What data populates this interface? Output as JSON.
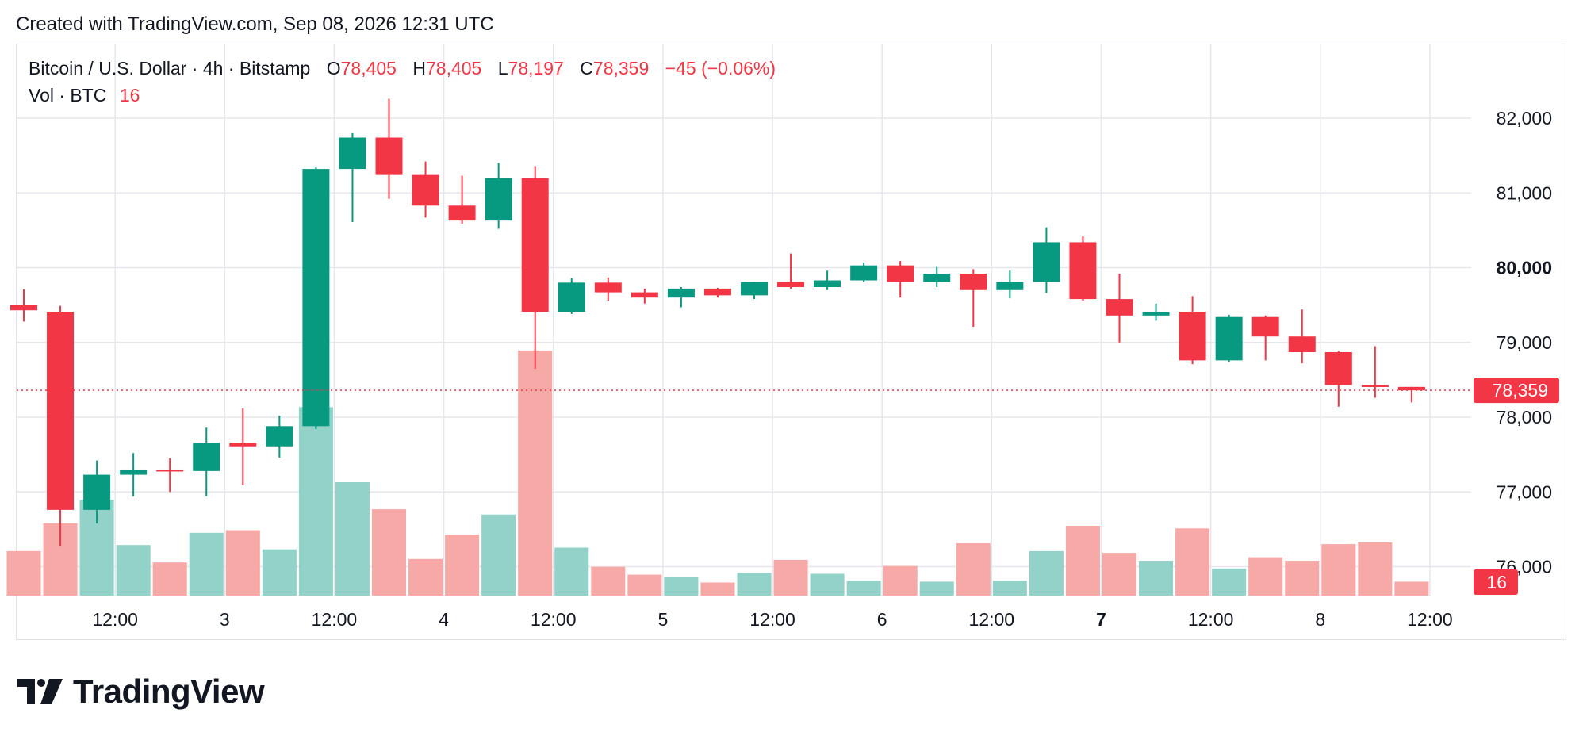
{
  "header": {
    "caption": "Created with TradingView.com, Sep 08, 2026 12:31 UTC"
  },
  "legend": {
    "symbol": "Bitcoin / U.S. Dollar · 4h · Bitstamp",
    "open_label": "O",
    "open": "78,405",
    "high_label": "H",
    "high": "78,405",
    "low_label": "L",
    "low": "78,197",
    "close_label": "C",
    "close": "78,359",
    "change": "−45 (−0.06%)",
    "vol_label": "Vol · BTC",
    "vol": "16"
  },
  "footer": {
    "brand": "TradingView",
    "logo_icon": "tradingview-logo-icon"
  },
  "colors": {
    "up": "#089981",
    "down": "#f23645",
    "up_vol": "#93d2c9",
    "down_vol": "#f7a9a7",
    "grid": "#e5e7ec"
  },
  "chart_data": {
    "type": "candlestick",
    "interval": "4h",
    "price_axis": {
      "ticks": [
        {
          "value": 82000,
          "label": "82,000"
        },
        {
          "value": 81000,
          "label": "81,000"
        },
        {
          "value": 80000,
          "label": "80,000",
          "bold": true
        },
        {
          "value": 79000,
          "label": "79,000"
        },
        {
          "value": 78000,
          "label": "78,000"
        },
        {
          "value": 77000,
          "label": "77,000"
        },
        {
          "value": 76000,
          "label": "76,000"
        }
      ]
    },
    "time_axis": {
      "ticks": [
        {
          "index": 2.5,
          "label": "12:00"
        },
        {
          "index": 5.5,
          "label": "3"
        },
        {
          "index": 8.5,
          "label": "12:00"
        },
        {
          "index": 11.5,
          "label": "4"
        },
        {
          "index": 14.5,
          "label": "12:00"
        },
        {
          "index": 17.5,
          "label": "5"
        },
        {
          "index": 20.5,
          "label": "12:00"
        },
        {
          "index": 23.5,
          "label": "6"
        },
        {
          "index": 26.5,
          "label": "12:00"
        },
        {
          "index": 29.5,
          "label": "7",
          "bold": true
        },
        {
          "index": 32.5,
          "label": "12:00"
        },
        {
          "index": 35.5,
          "label": "8"
        },
        {
          "index": 38.5,
          "label": "12:00"
        }
      ]
    },
    "last_price": {
      "value": 78359,
      "label": "78,359"
    },
    "last_volume": {
      "value": 16,
      "label": "16"
    },
    "candles": [
      {
        "o": 79500,
        "h": 79710,
        "l": 79280,
        "c": 79430,
        "v": 51
      },
      {
        "o": 79410,
        "h": 79490,
        "l": 76280,
        "c": 76760,
        "v": 83
      },
      {
        "o": 76760,
        "h": 77420,
        "l": 76580,
        "c": 77230,
        "v": 110
      },
      {
        "o": 77230,
        "h": 77520,
        "l": 76940,
        "c": 77300,
        "v": 58
      },
      {
        "o": 77300,
        "h": 77450,
        "l": 77000,
        "c": 77280,
        "v": 38
      },
      {
        "o": 77280,
        "h": 77860,
        "l": 76940,
        "c": 77660,
        "v": 72
      },
      {
        "o": 77660,
        "h": 78120,
        "l": 77090,
        "c": 77610,
        "v": 75
      },
      {
        "o": 77610,
        "h": 78020,
        "l": 77460,
        "c": 77880,
        "v": 53
      },
      {
        "o": 77880,
        "h": 81340,
        "l": 77840,
        "c": 81320,
        "v": 216
      },
      {
        "o": 81320,
        "h": 81800,
        "l": 80610,
        "c": 81740,
        "v": 130
      },
      {
        "o": 81740,
        "h": 82260,
        "l": 80920,
        "c": 81240,
        "v": 99
      },
      {
        "o": 81240,
        "h": 81420,
        "l": 80670,
        "c": 80830,
        "v": 42
      },
      {
        "o": 80830,
        "h": 81230,
        "l": 80590,
        "c": 80630,
        "v": 70
      },
      {
        "o": 80630,
        "h": 81400,
        "l": 80520,
        "c": 81200,
        "v": 93
      },
      {
        "o": 81200,
        "h": 81360,
        "l": 78650,
        "c": 79410,
        "v": 281
      },
      {
        "o": 79410,
        "h": 79860,
        "l": 79380,
        "c": 79800,
        "v": 55
      },
      {
        "o": 79800,
        "h": 79870,
        "l": 79560,
        "c": 79670,
        "v": 33
      },
      {
        "o": 79670,
        "h": 79720,
        "l": 79520,
        "c": 79600,
        "v": 24
      },
      {
        "o": 79600,
        "h": 79740,
        "l": 79470,
        "c": 79720,
        "v": 21
      },
      {
        "o": 79720,
        "h": 79730,
        "l": 79600,
        "c": 79630,
        "v": 15
      },
      {
        "o": 79630,
        "h": 79810,
        "l": 79580,
        "c": 79810,
        "v": 26
      },
      {
        "o": 79810,
        "h": 80190,
        "l": 79720,
        "c": 79740,
        "v": 41
      },
      {
        "o": 79740,
        "h": 79960,
        "l": 79700,
        "c": 79830,
        "v": 25
      },
      {
        "o": 79830,
        "h": 80070,
        "l": 79810,
        "c": 80030,
        "v": 17
      },
      {
        "o": 80030,
        "h": 80090,
        "l": 79600,
        "c": 79810,
        "v": 34
      },
      {
        "o": 79810,
        "h": 80010,
        "l": 79740,
        "c": 79920,
        "v": 16
      },
      {
        "o": 79920,
        "h": 79980,
        "l": 79210,
        "c": 79700,
        "v": 60
      },
      {
        "o": 79700,
        "h": 79960,
        "l": 79590,
        "c": 79810,
        "v": 17
      },
      {
        "o": 79810,
        "h": 80540,
        "l": 79660,
        "c": 80340,
        "v": 51
      },
      {
        "o": 80340,
        "h": 80420,
        "l": 79560,
        "c": 79580,
        "v": 80
      },
      {
        "o": 79580,
        "h": 79920,
        "l": 79000,
        "c": 79360,
        "v": 49
      },
      {
        "o": 79360,
        "h": 79520,
        "l": 79290,
        "c": 79410,
        "v": 40
      },
      {
        "o": 79410,
        "h": 79620,
        "l": 78710,
        "c": 78760,
        "v": 77
      },
      {
        "o": 78760,
        "h": 79370,
        "l": 78740,
        "c": 79340,
        "v": 31
      },
      {
        "o": 79340,
        "h": 79360,
        "l": 78760,
        "c": 79080,
        "v": 44
      },
      {
        "o": 79080,
        "h": 79440,
        "l": 78720,
        "c": 78870,
        "v": 40
      },
      {
        "o": 78870,
        "h": 78890,
        "l": 78140,
        "c": 78430,
        "v": 59
      },
      {
        "o": 78430,
        "h": 78950,
        "l": 78260,
        "c": 78405,
        "v": 61
      },
      {
        "o": 78405,
        "h": 78405,
        "l": 78197,
        "c": 78359,
        "v": 16
      }
    ]
  }
}
